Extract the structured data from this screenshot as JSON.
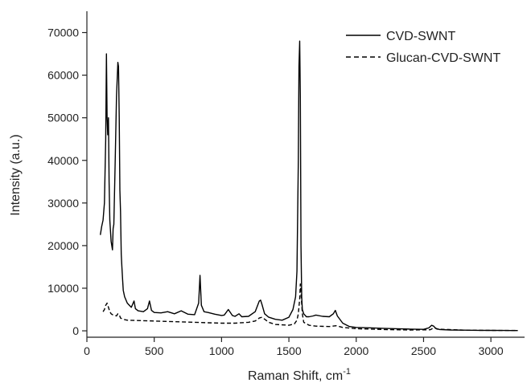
{
  "chart_data": {
    "type": "line",
    "xlabel": "Raman Shift, cm",
    "xlabel_superscript": "-1",
    "ylabel": "Intensity (a.u.)",
    "xlim": [
      0,
      3250
    ],
    "ylim": [
      -1500,
      75000
    ],
    "x_ticks": [
      0,
      500,
      1000,
      1500,
      2000,
      2500,
      3000
    ],
    "x_tick_labels": [
      "0",
      "500",
      "1000",
      "1500",
      "2000",
      "2500",
      "3000"
    ],
    "y_ticks": [
      0,
      10000,
      20000,
      30000,
      40000,
      50000,
      60000,
      70000
    ],
    "y_tick_labels": [
      "0",
      "10000",
      "20000",
      "30000",
      "40000",
      "50000",
      "60000",
      "70000"
    ],
    "grid": false,
    "legend_position": "top-right",
    "series": [
      {
        "name": "CVD-SWNT",
        "style": "solid",
        "color": "#000000",
        "x": [
          100,
          110,
          120,
          130,
          140,
          145,
          150,
          155,
          160,
          165,
          170,
          180,
          190,
          195,
          200,
          210,
          220,
          230,
          235,
          240,
          245,
          250,
          255,
          260,
          265,
          270,
          280,
          300,
          330,
          350,
          360,
          380,
          420,
          450,
          465,
          480,
          500,
          550,
          600,
          650,
          700,
          750,
          800,
          830,
          840,
          850,
          870,
          900,
          950,
          1000,
          1020,
          1050,
          1080,
          1100,
          1130,
          1150,
          1200,
          1250,
          1280,
          1290,
          1300,
          1320,
          1350,
          1400,
          1450,
          1500,
          1530,
          1550,
          1560,
          1570,
          1575,
          1580,
          1585,
          1590,
          1595,
          1600,
          1610,
          1630,
          1650,
          1680,
          1700,
          1750,
          1800,
          1830,
          1845,
          1860,
          1900,
          1950,
          2000,
          2100,
          2200,
          2300,
          2400,
          2500,
          2540,
          2560,
          2575,
          2590,
          2620,
          2700,
          2800,
          2900,
          3000,
          3100,
          3200
        ],
        "y": [
          22500,
          24500,
          26000,
          30000,
          45000,
          65000,
          50000,
          46000,
          50000,
          35000,
          26000,
          21000,
          19000,
          24000,
          25000,
          40000,
          55000,
          63000,
          62000,
          50000,
          33000,
          28000,
          18000,
          15000,
          12000,
          9500,
          8000,
          6500,
          5500,
          7000,
          5200,
          4700,
          4500,
          5200,
          7000,
          4800,
          4300,
          4200,
          4500,
          4000,
          4700,
          3900,
          3800,
          6500,
          13000,
          6000,
          4500,
          4300,
          3900,
          3600,
          3700,
          5000,
          3600,
          3400,
          4000,
          3300,
          3400,
          4500,
          7000,
          7200,
          6200,
          4000,
          3200,
          2700,
          2500,
          3200,
          5000,
          8000,
          14000,
          40000,
          62000,
          68000,
          55000,
          20000,
          8000,
          5000,
          4000,
          3300,
          3300,
          3500,
          3700,
          3400,
          3300,
          4000,
          4800,
          3500,
          1800,
          1000,
          800,
          700,
          600,
          500,
          400,
          350,
          700,
          1300,
          1100,
          600,
          300,
          200,
          150,
          120,
          100,
          80,
          60
        ]
      },
      {
        "name": "Glucan-CVD-SWNT",
        "style": "dashed",
        "color": "#000000",
        "x": [
          120,
          130,
          140,
          150,
          160,
          170,
          180,
          190,
          200,
          220,
          230,
          240,
          250,
          270,
          300,
          400,
          500,
          600,
          700,
          800,
          900,
          1000,
          1100,
          1200,
          1250,
          1280,
          1300,
          1350,
          1400,
          1500,
          1540,
          1560,
          1570,
          1580,
          1585,
          1590,
          1600,
          1610,
          1650,
          1700,
          1800,
          1850,
          1900,
          2000,
          2200,
          2400,
          2550,
          2580,
          2600,
          2800,
          3000,
          3200
        ],
        "y": [
          4500,
          5000,
          6000,
          6500,
          5500,
          4500,
          4000,
          3800,
          3700,
          3500,
          4000,
          3800,
          3000,
          2700,
          2500,
          2400,
          2300,
          2200,
          2100,
          2000,
          1900,
          1800,
          1800,
          2000,
          2300,
          3000,
          3200,
          2000,
          1500,
          1300,
          1600,
          2500,
          4000,
          7500,
          11000,
          9000,
          4000,
          2000,
          1300,
          1100,
          1000,
          1200,
          800,
          500,
          300,
          200,
          250,
          800,
          400,
          150,
          100,
          80
        ]
      }
    ]
  }
}
